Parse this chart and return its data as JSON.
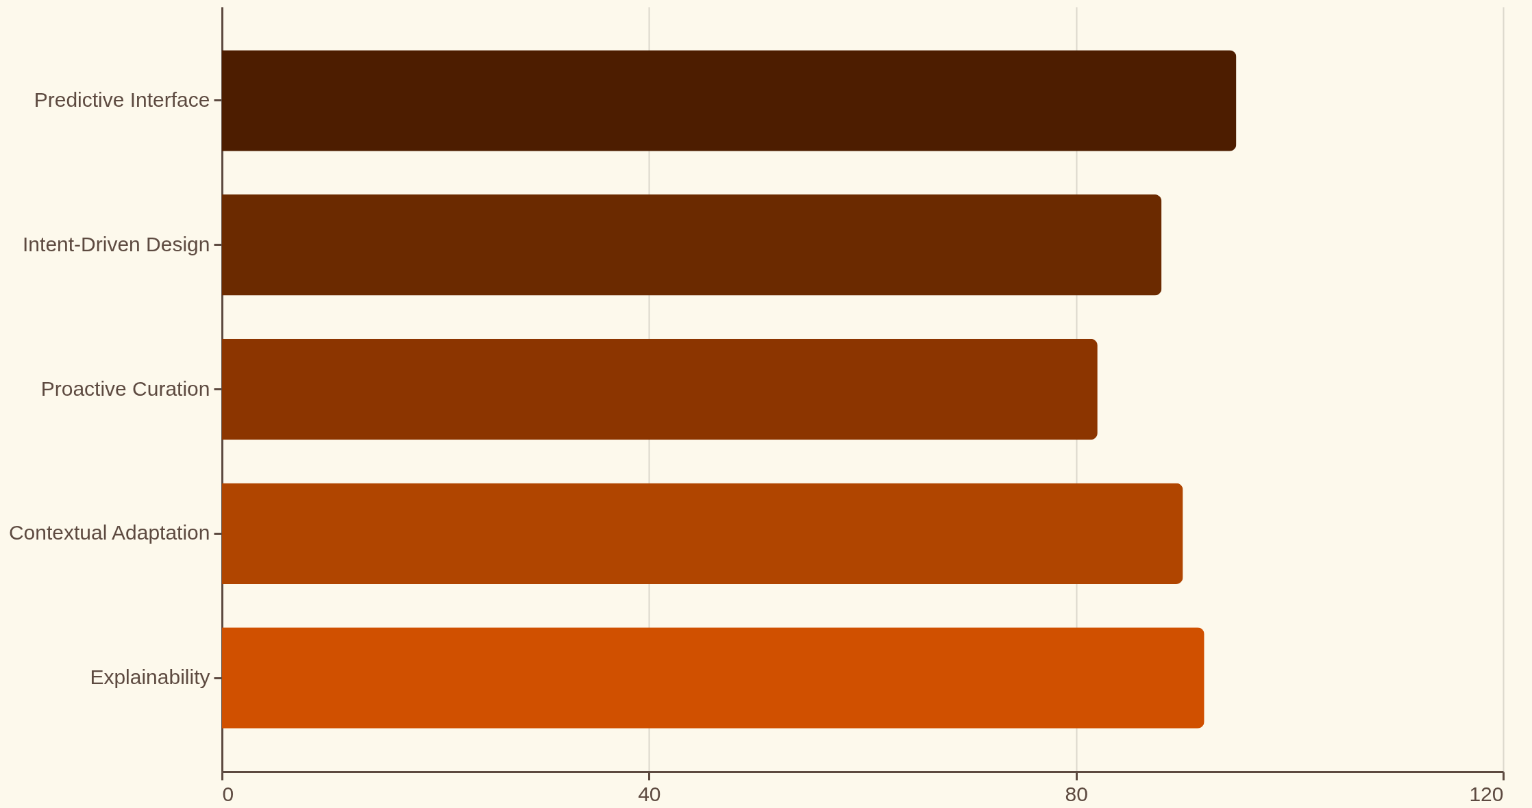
{
  "chart_data": {
    "type": "bar",
    "orientation": "horizontal",
    "categories": [
      "Predictive Interface",
      "Intent-Driven Design",
      "Proactive Curation",
      "Contextual Adaptation",
      "Explainability"
    ],
    "values": [
      95,
      88,
      82,
      90,
      92
    ],
    "colors": [
      "#4d1d00",
      "#6b2a00",
      "#8c3500",
      "#b04500",
      "#d05000"
    ],
    "xlim": [
      0,
      120
    ],
    "xticks": [
      0,
      40,
      80,
      120
    ],
    "grid": "x"
  }
}
